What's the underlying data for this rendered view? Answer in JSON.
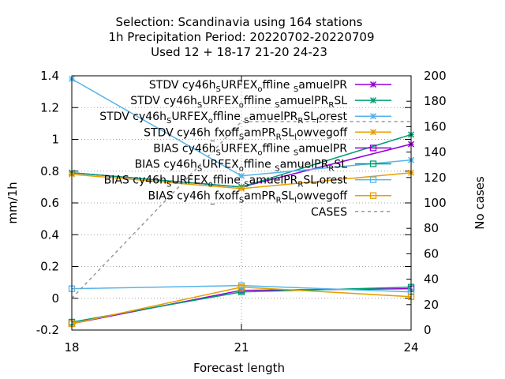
{
  "chart_data": {
    "type": "line",
    "title_lines": [
      "Selection: Scandinavia using   164 stations",
      "1h Precipitation   Period: 20220702-20220709",
      "Used  12 + 18-17 21-20 24-23"
    ],
    "xlabel": "Forecast length",
    "ylabel": "mm/1h",
    "y2label": "No cases",
    "x": [
      18,
      21,
      24
    ],
    "xlim": [
      18,
      24
    ],
    "ylim": [
      -0.2,
      1.4
    ],
    "y2lim": [
      0,
      200
    ],
    "xticks": [
      "18",
      "21",
      "24"
    ],
    "yticks": [
      "-0.2",
      "0",
      "0.2",
      "0.4",
      "0.6",
      "0.8",
      "1",
      "1.2",
      "1.4"
    ],
    "y2ticks": [
      "0",
      "20",
      "40",
      "60",
      "80",
      "100",
      "120",
      "140",
      "160",
      "180",
      "200"
    ],
    "grid": true,
    "legend_position": "top-right",
    "series": [
      {
        "name": "STDV cy46h_S URFEX_o ffline _S amuelPR",
        "legend_parts": [
          [
            "STDV cy46h",
            "n"
          ],
          [
            "S",
            "sub"
          ],
          [
            "URFEX",
            "n"
          ],
          [
            "o",
            "sub"
          ],
          [
            "ffline ",
            "n"
          ],
          [
            "S",
            "sub"
          ],
          [
            "amuelPR",
            "n"
          ]
        ],
        "values": [
          0.79,
          0.7,
          0.97
        ],
        "axis": "y1",
        "color": "#9400d3",
        "marker": "x",
        "dash": false
      },
      {
        "name": "STDV cy46h_S URFEX_o ffline _S amuelPR _R SL",
        "legend_parts": [
          [
            "STDV cy46h",
            "n"
          ],
          [
            "S",
            "sub"
          ],
          [
            "URFEX",
            "n"
          ],
          [
            "o",
            "sub"
          ],
          [
            "ffline ",
            "n"
          ],
          [
            "S",
            "sub"
          ],
          [
            "amuelPR",
            "n"
          ],
          [
            "R",
            "sub"
          ],
          [
            "SL",
            "n"
          ]
        ],
        "values": [
          0.79,
          0.7,
          1.03
        ],
        "axis": "y1",
        "color": "#009e73",
        "marker": "x",
        "dash": false
      },
      {
        "name": "STDV cy46h_S URFEX_o ffline _S amuelPR _R SL_f orest",
        "legend_parts": [
          [
            "STDV cy46h",
            "n"
          ],
          [
            "S",
            "sub"
          ],
          [
            "URFEX",
            "n"
          ],
          [
            "o",
            "sub"
          ],
          [
            "ffline ",
            "n"
          ],
          [
            "S",
            "sub"
          ],
          [
            "amuelPR",
            "n"
          ],
          [
            "R",
            "sub"
          ],
          [
            "SL",
            "n"
          ],
          [
            "f",
            "sub"
          ],
          [
            "orest",
            "n"
          ]
        ],
        "values": [
          1.38,
          0.77,
          0.87
        ],
        "axis": "y1",
        "color": "#56b4e9",
        "marker": "x",
        "dash": false
      },
      {
        "name": "STDV cy46h_ fxoff_S amPR_R SL_l owvegoff",
        "legend_parts": [
          [
            "STDV cy46h",
            "n"
          ],
          [
            "_",
            "sub"
          ],
          [
            "fxoff",
            "n"
          ],
          [
            "S",
            "sub"
          ],
          [
            "amPR",
            "n"
          ],
          [
            "R",
            "sub"
          ],
          [
            "SL",
            "n"
          ],
          [
            "l",
            "sub"
          ],
          [
            "owvegoff",
            "n"
          ]
        ],
        "values": [
          0.78,
          0.69,
          0.79
        ],
        "axis": "y1",
        "color": "#e69f00",
        "marker": "x",
        "dash": false
      },
      {
        "name": "BIAS cy46h_S URFEX_o ffline _S amuelPR",
        "legend_parts": [
          [
            "BIAS cy46h",
            "n"
          ],
          [
            "S",
            "sub"
          ],
          [
            "URFEX",
            "n"
          ],
          [
            "o",
            "sub"
          ],
          [
            "ffline ",
            "n"
          ],
          [
            "S",
            "sub"
          ],
          [
            "amuelPR",
            "n"
          ]
        ],
        "values": [
          -0.16,
          0.05,
          0.06
        ],
        "axis": "y1",
        "color": "#9400d3",
        "marker": "square",
        "dash": false
      },
      {
        "name": "BIAS cy46h_S URFEX_o ffline _S amuelPR _R SL",
        "legend_parts": [
          [
            "BIAS cy46h",
            "n"
          ],
          [
            "S",
            "sub"
          ],
          [
            "URFEX",
            "n"
          ],
          [
            "o",
            "sub"
          ],
          [
            "ffline ",
            "n"
          ],
          [
            "S",
            "sub"
          ],
          [
            "amuelPR",
            "n"
          ],
          [
            "R",
            "sub"
          ],
          [
            "SL",
            "n"
          ]
        ],
        "values": [
          -0.15,
          0.04,
          0.07
        ],
        "axis": "y1",
        "color": "#009e73",
        "marker": "square",
        "dash": false
      },
      {
        "name": "BIAS cy46h_S URFEX_o ffline _S amuelPR _R SL_f orest",
        "legend_parts": [
          [
            "BIAS cy46h",
            "n"
          ],
          [
            "S",
            "sub"
          ],
          [
            "URFEX",
            "n"
          ],
          [
            "o",
            "sub"
          ],
          [
            "ffline ",
            "n"
          ],
          [
            "S",
            "sub"
          ],
          [
            "amuelPR",
            "n"
          ],
          [
            "R",
            "sub"
          ],
          [
            "SL",
            "n"
          ],
          [
            "f",
            "sub"
          ],
          [
            "orest",
            "n"
          ]
        ],
        "values": [
          0.06,
          0.08,
          0.04
        ],
        "axis": "y1",
        "color": "#56b4e9",
        "marker": "square",
        "dash": false
      },
      {
        "name": "BIAS cy46h_ fxoff_S amPR_R SL_l owvegoff",
        "legend_parts": [
          [
            "BIAS cy46h",
            "n"
          ],
          [
            "_",
            "sub"
          ],
          [
            "fxoff",
            "n"
          ],
          [
            "S",
            "sub"
          ],
          [
            "amPR",
            "n"
          ],
          [
            "R",
            "sub"
          ],
          [
            "SL",
            "n"
          ],
          [
            "l",
            "sub"
          ],
          [
            "owvegoff",
            "n"
          ]
        ],
        "values": [
          -0.16,
          0.07,
          0.01
        ],
        "axis": "y1",
        "color": "#e69f00",
        "marker": "square",
        "dash": false
      },
      {
        "name": "CASES",
        "legend_parts": [
          [
            "CASES",
            "n"
          ]
        ],
        "values": [
          25,
          164,
          164
        ],
        "axis": "y2",
        "color": "#999999",
        "marker": "none",
        "dash": true
      }
    ]
  }
}
